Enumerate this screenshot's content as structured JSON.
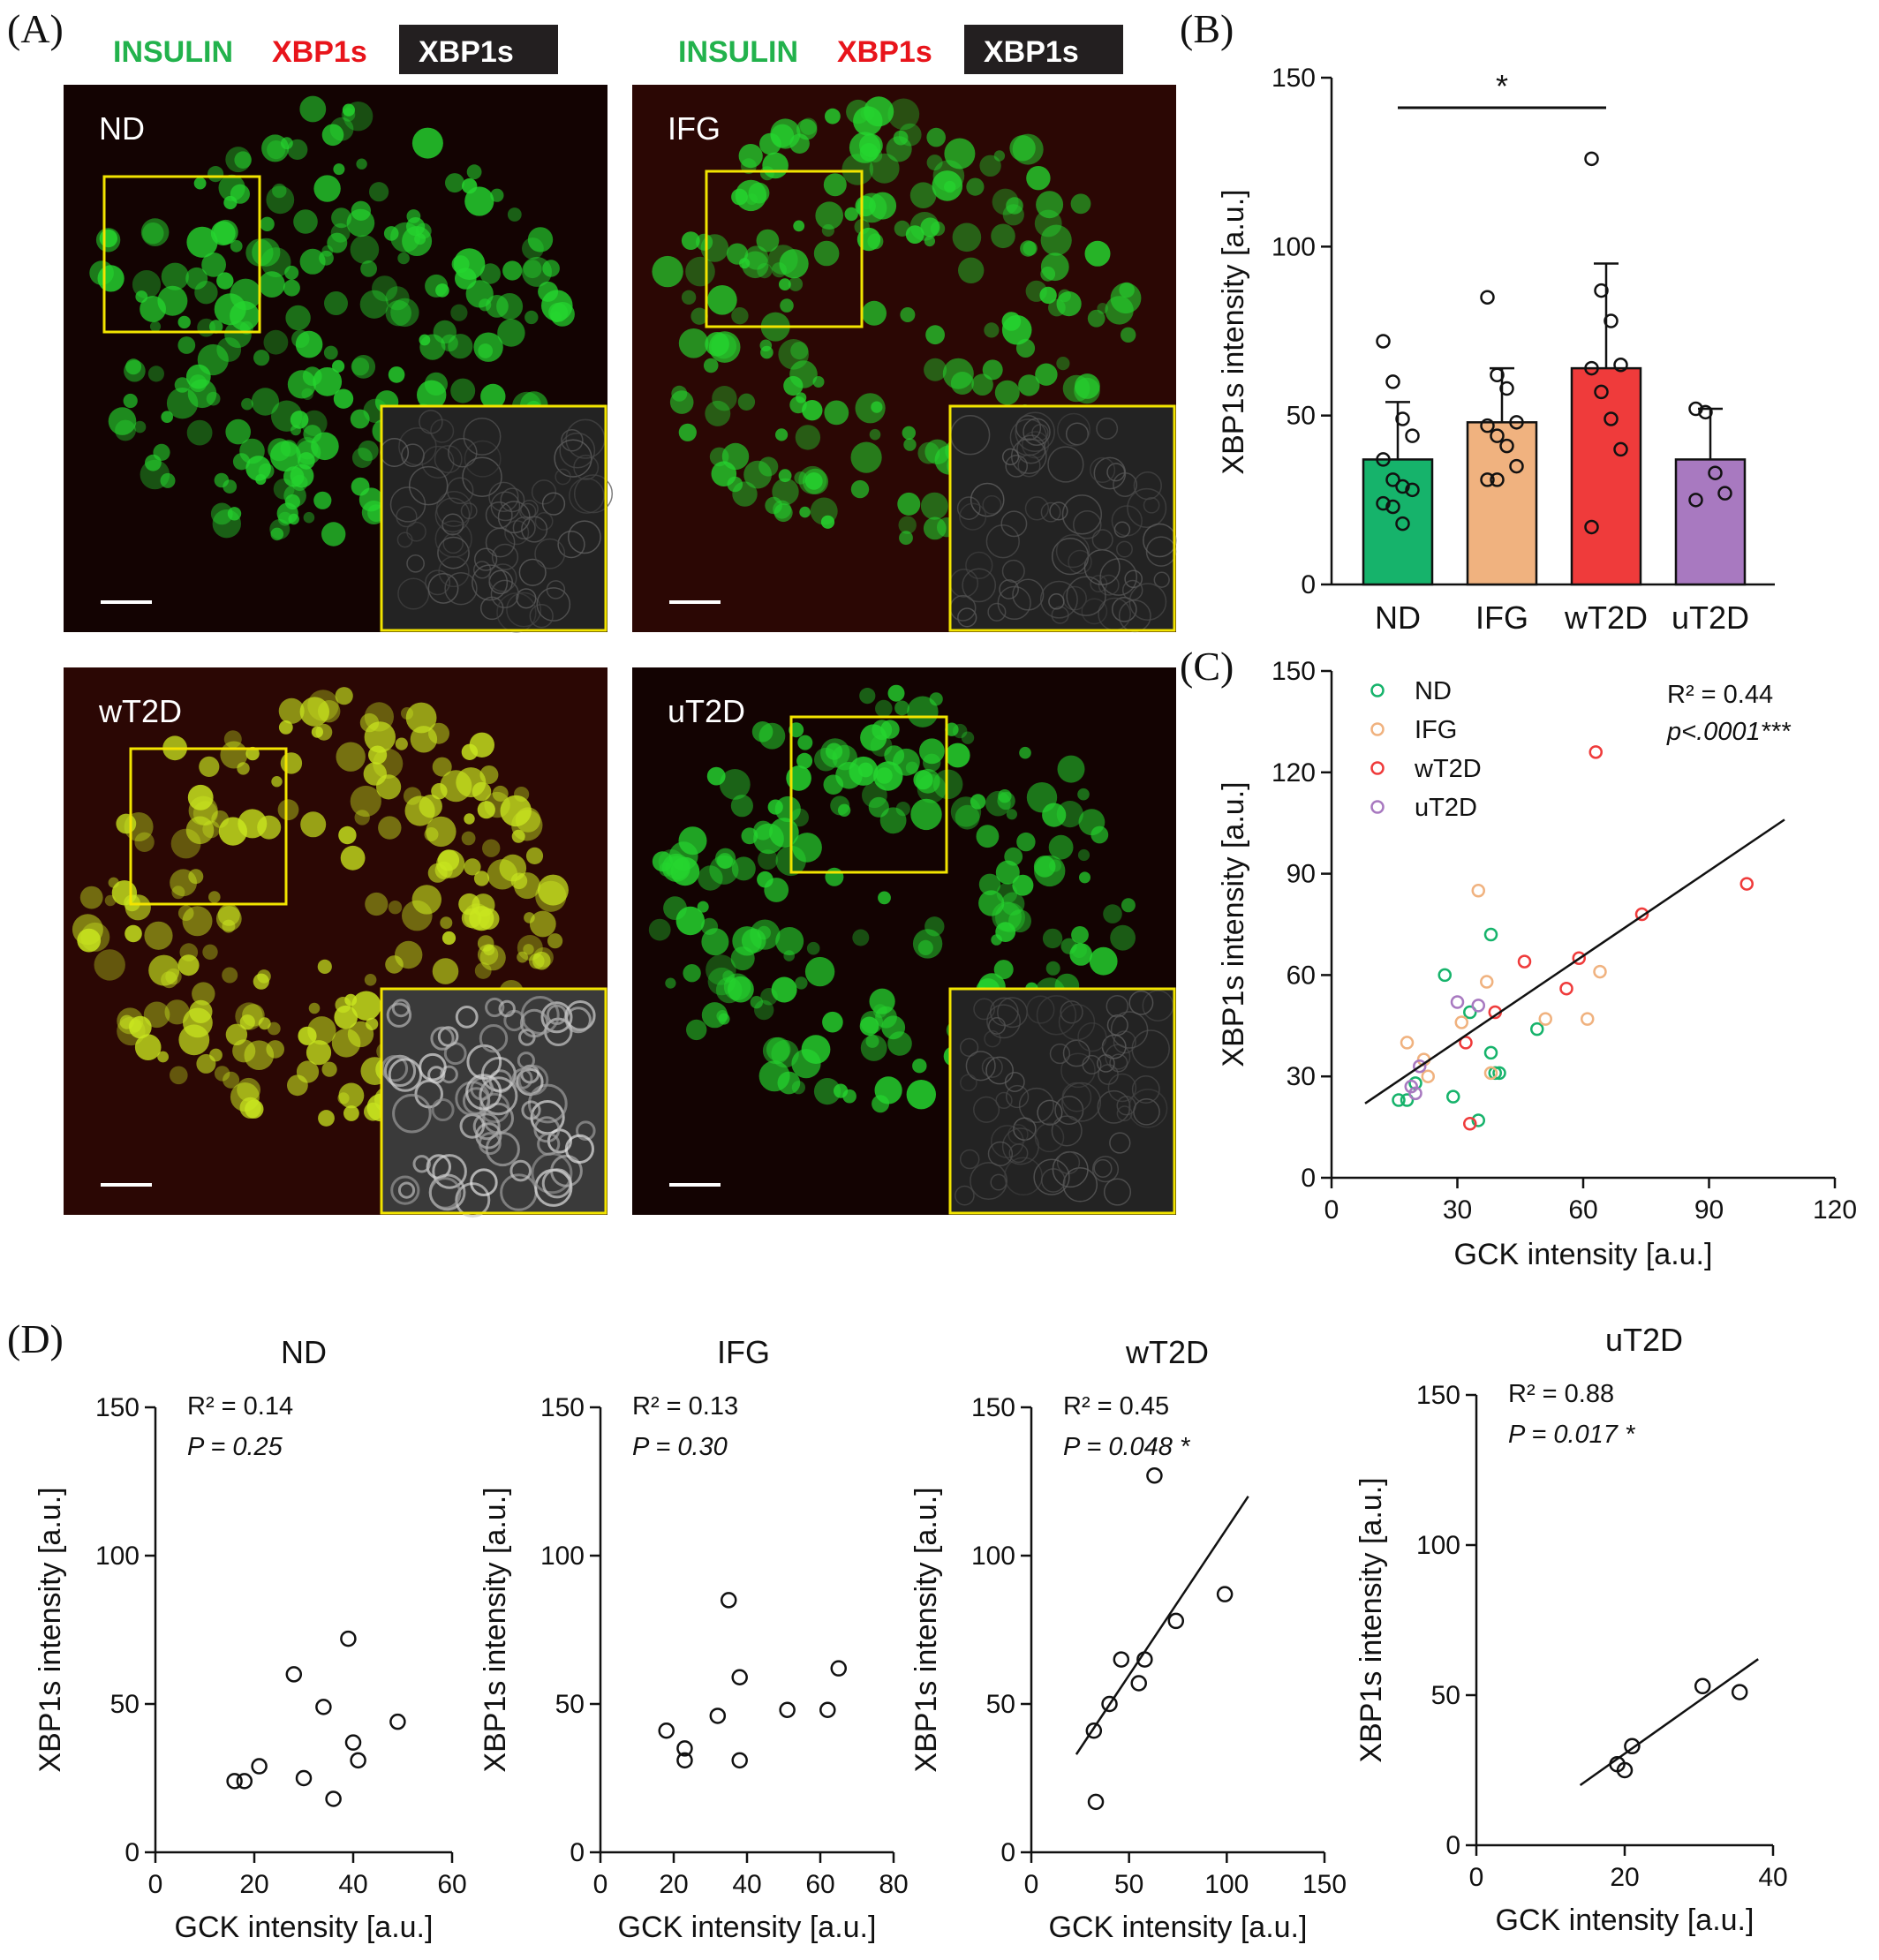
{
  "panel_labels": {
    "A": "(A)",
    "B": "(B)",
    "C": "(C)",
    "D": "(D)"
  },
  "stain_legend": {
    "green": "INSULIN",
    "red": "XBP1s",
    "boxed": "XBP1s"
  },
  "colors": {
    "ND": "#16b36b",
    "IFG": "#f0b27f",
    "wT2D": "#ef3b3b",
    "uT2D": "#a879c0",
    "insulin": "#22c93a",
    "xbp1s": "#e8141b",
    "inset_border": "#f2e400"
  },
  "micrographs": [
    {
      "id": "ND",
      "label": "ND",
      "tint": "green"
    },
    {
      "id": "IFG",
      "label": "IFG",
      "tint": "green"
    },
    {
      "id": "wT2D",
      "label": "wT2D",
      "tint": "yellow"
    },
    {
      "id": "uT2D",
      "label": "uT2D",
      "tint": "green"
    }
  ],
  "chart_data": [
    {
      "id": "B",
      "type": "bar",
      "categories": [
        "ND",
        "IFG",
        "wT2D",
        "uT2D"
      ],
      "values": [
        37,
        48,
        64,
        37
      ],
      "sd": [
        17,
        16,
        31,
        15
      ],
      "points": [
        [
          72,
          60,
          49,
          44,
          37,
          31,
          29,
          28,
          24,
          23,
          18
        ],
        [
          85,
          62,
          58,
          48,
          47,
          44,
          41,
          35,
          31,
          31
        ],
        [
          126,
          87,
          78,
          65,
          64,
          57,
          49,
          40,
          17
        ],
        [
          52,
          51,
          33,
          27,
          25
        ]
      ],
      "ylim": [
        0,
        150
      ],
      "yticks": [
        0,
        50,
        100,
        150
      ],
      "ylabel": "XBP1s intensity [a.u.]",
      "xlabel": "",
      "significance": {
        "from": "ND",
        "to": "wT2D",
        "label": "*"
      }
    },
    {
      "id": "C",
      "type": "scatter",
      "xlabel": "GCK intensity [a.u.]",
      "ylabel": "XBP1s intensity [a.u.]",
      "xlim": [
        0,
        120
      ],
      "ylim": [
        0,
        150
      ],
      "xticks": [
        0,
        30,
        60,
        90,
        120
      ],
      "yticks": [
        0,
        30,
        60,
        90,
        120,
        150
      ],
      "legend": [
        "ND",
        "IFG",
        "wT2D",
        "uT2D"
      ],
      "r2_text": "R² = 0.44",
      "p_text": "p<.0001***",
      "fit": {
        "x": [
          8,
          108
        ],
        "y": [
          22,
          106
        ]
      },
      "series": [
        {
          "name": "ND",
          "x": [
            16,
            18,
            20,
            27,
            29,
            33,
            35,
            38,
            39,
            40,
            49,
            38
          ],
          "y": [
            23,
            23,
            28,
            60,
            24,
            49,
            17,
            37,
            31,
            31,
            44,
            72
          ]
        },
        {
          "name": "IFG",
          "x": [
            18,
            22,
            23,
            31,
            35,
            37,
            38,
            51,
            61,
            64
          ],
          "y": [
            40,
            35,
            30,
            46,
            85,
            58,
            31,
            47,
            47,
            61
          ]
        },
        {
          "name": "wT2D",
          "x": [
            32,
            33,
            39,
            46,
            56,
            59,
            63,
            74,
            99
          ],
          "y": [
            40,
            16,
            49,
            64,
            56,
            65,
            126,
            78,
            87
          ]
        },
        {
          "name": "uT2D",
          "x": [
            19,
            20,
            21,
            30,
            35
          ],
          "y": [
            27,
            25,
            33,
            52,
            51
          ]
        }
      ]
    },
    {
      "id": "D-ND",
      "type": "scatter",
      "title": "ND",
      "xlabel": "GCK intensity [a.u.]",
      "ylabel": "XBP1s intensity [a.u.]",
      "xlim": [
        0,
        60
      ],
      "ylim": [
        0,
        150
      ],
      "xticks": [
        0,
        20,
        40,
        60
      ],
      "yticks": [
        0,
        50,
        100,
        150
      ],
      "r2_text": "R² = 0.14",
      "p_text": "P = 0.25",
      "x": [
        16,
        18,
        21,
        28,
        30,
        34,
        36,
        40,
        41,
        49,
        39
      ],
      "y": [
        24,
        24,
        29,
        60,
        25,
        49,
        18,
        37,
        31,
        44,
        72
      ]
    },
    {
      "id": "D-IFG",
      "type": "scatter",
      "title": "IFG",
      "xlabel": "GCK intensity [a.u.]",
      "ylabel": "XBP1s intensity [a.u.]",
      "xlim": [
        0,
        80
      ],
      "ylim": [
        0,
        150
      ],
      "xticks": [
        0,
        20,
        40,
        60,
        80
      ],
      "yticks": [
        0,
        50,
        100,
        150
      ],
      "r2_text": "R² = 0.13",
      "p_text": "P = 0.30",
      "x": [
        18,
        23,
        23,
        32,
        35,
        38,
        38,
        51,
        62,
        65
      ],
      "y": [
        41,
        35,
        31,
        46,
        85,
        59,
        31,
        48,
        48,
        62
      ]
    },
    {
      "id": "D-wT2D",
      "type": "scatter",
      "title": "wT2D",
      "xlabel": "GCK intensity [a.u.]",
      "ylabel": "XBP1s intensity [a.u.]",
      "xlim": [
        0,
        150
      ],
      "ylim": [
        0,
        150
      ],
      "xticks": [
        0,
        50,
        100,
        150
      ],
      "yticks": [
        0,
        50,
        100,
        150
      ],
      "r2_text": "R² = 0.45",
      "p_text": "P = 0.048 *",
      "fit": {
        "x": [
          23,
          111
        ],
        "y": [
          33,
          120
        ]
      },
      "x": [
        32,
        33,
        40,
        46,
        55,
        58,
        63,
        74,
        99
      ],
      "y": [
        41,
        17,
        50,
        65,
        57,
        65,
        127,
        78,
        87
      ]
    },
    {
      "id": "D-uT2D",
      "type": "scatter",
      "title": "uT2D",
      "xlabel": "GCK intensity [a.u.]",
      "ylabel": "XBP1s intensity [a.u.]",
      "xlim": [
        0,
        40
      ],
      "ylim": [
        0,
        150
      ],
      "xticks": [
        0,
        20,
        40
      ],
      "yticks": [
        0,
        50,
        100,
        150
      ],
      "r2_text": "R² = 0.88",
      "p_text": "P = 0.017 *",
      "fit": {
        "x": [
          14,
          38
        ],
        "y": [
          20,
          62
        ]
      },
      "x": [
        19,
        20,
        21,
        30.5,
        35.5
      ],
      "y": [
        27,
        25,
        33,
        53,
        51
      ]
    }
  ]
}
